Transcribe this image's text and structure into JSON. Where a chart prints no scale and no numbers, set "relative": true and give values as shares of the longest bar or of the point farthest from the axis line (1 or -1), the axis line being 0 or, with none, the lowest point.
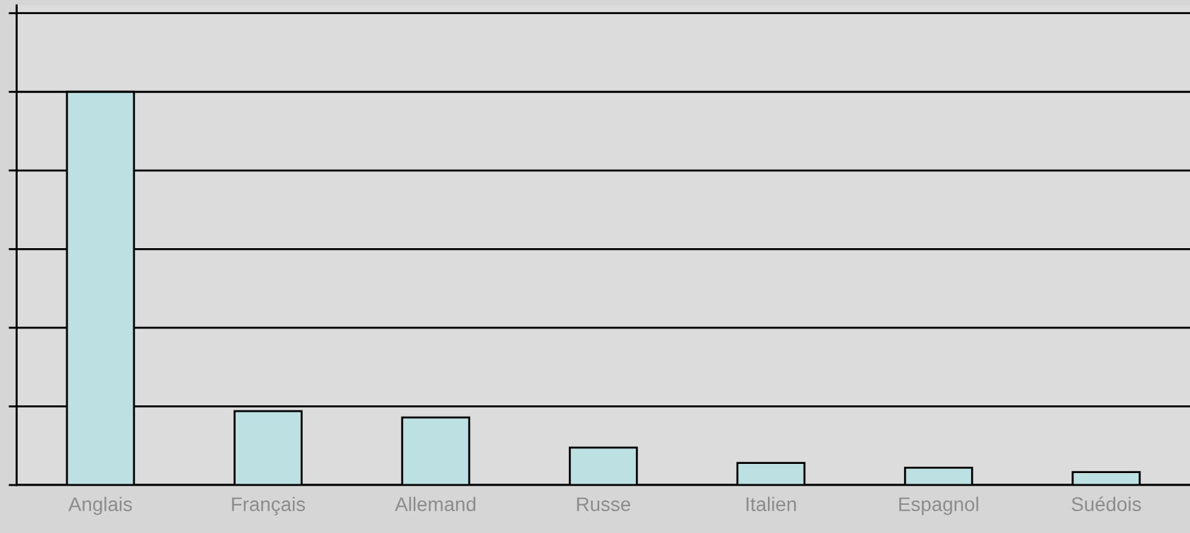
{
  "chart_data": {
    "type": "bar",
    "relative": true,
    "categories": [
      "Anglais",
      "Français",
      "Allemand",
      "Russe",
      "Italien",
      "Espagnol",
      "Suédois"
    ],
    "values": [
      1,
      0.188,
      0.172,
      0.095,
      0.056,
      0.044,
      0.033
    ],
    "color": "#bde0e3",
    "grid": "y"
  }
}
